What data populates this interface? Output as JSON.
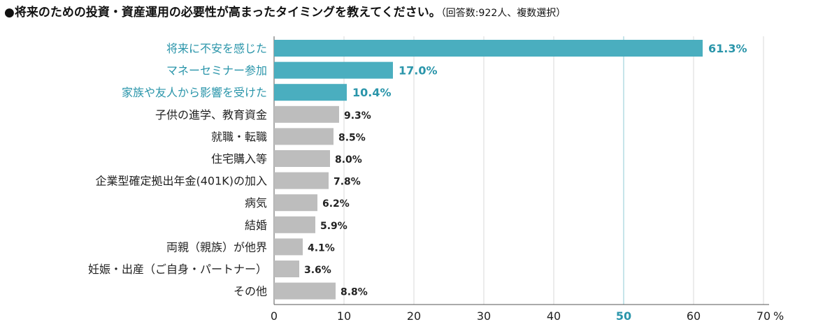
{
  "chart_data": {
    "type": "bar",
    "orientation": "horizontal",
    "title": "●将来のための投資・資産運用の必要性が高まったタイミングを教えてください。",
    "subtitle": "（回答数:922人、複数選択）",
    "categories": [
      "将来に不安を感じた",
      "マネーセミナー参加",
      "家族や友人から影響を受けた",
      "子供の進学、教育資金",
      "就職・転職",
      "住宅購入等",
      "企業型確定拠出年金(401K)の加入",
      "病気",
      "結婚",
      "両親（親族）が他界",
      "妊娠・出産（ご自身・パートナー）",
      "その他"
    ],
    "values": [
      61.3,
      17.0,
      10.4,
      9.3,
      8.5,
      8.0,
      7.8,
      6.2,
      5.9,
      4.1,
      3.6,
      8.8
    ],
    "value_labels": [
      "61.3%",
      "17.0%",
      "10.4%",
      "9.3%",
      "8.5%",
      "8.0%",
      "7.8%",
      "6.2%",
      "5.9%",
      "4.1%",
      "3.6%",
      "8.8%"
    ],
    "highlight_count": 3,
    "xlim": [
      0,
      70
    ],
    "xticks": [
      0,
      10,
      20,
      30,
      40,
      50,
      60,
      70
    ],
    "x_tick_labels": [
      "0",
      "10",
      "20",
      "30",
      "40",
      "50",
      "60",
      "70"
    ],
    "x_unit": "%",
    "highlight_tick": 50,
    "grid": true,
    "legend": "none",
    "colors": {
      "highlight": "#4aaebf",
      "normal": "#bdbdbd",
      "highlight_text": "#2a95aa",
      "grid": "#d9d9d9",
      "highlight_grid": "#8fcbd6",
      "text": "#222222"
    }
  }
}
